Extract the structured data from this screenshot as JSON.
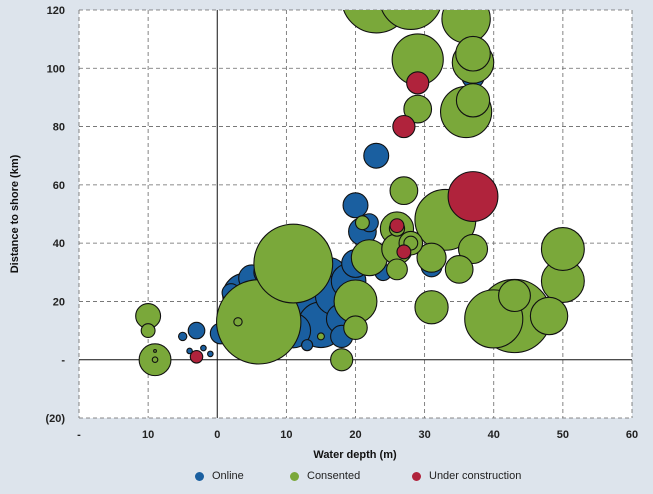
{
  "colors": {
    "background": "#dde4ec",
    "plot_background": "#ffffff",
    "online": "#1a5fa0",
    "consented": "#7aa83a",
    "under_construction": "#b0233c",
    "grid": "#666666",
    "stroke": "#111111"
  },
  "chart_data": {
    "type": "bubble",
    "title": "",
    "xlabel": "Water depth (m)",
    "ylabel": "Distance to shore (km)",
    "xlim": [
      -20,
      60
    ],
    "ylim": [
      -20,
      120
    ],
    "grid": true,
    "grid_style": "dashed",
    "legend_position": "bottom",
    "x_ticks": [
      {
        "value": -20,
        "label": "-"
      },
      {
        "value": -10,
        "label": "10"
      },
      {
        "value": 0,
        "label": "0"
      },
      {
        "value": 10,
        "label": "10"
      },
      {
        "value": 20,
        "label": "20"
      },
      {
        "value": 30,
        "label": "30"
      },
      {
        "value": 40,
        "label": "40"
      },
      {
        "value": 50,
        "label": "50"
      },
      {
        "value": 60,
        "label": "60"
      }
    ],
    "y_ticks": [
      {
        "value": -20,
        "label": "(20)"
      },
      {
        "value": 0,
        "label": "-"
      },
      {
        "value": 20,
        "label": "20"
      },
      {
        "value": 40,
        "label": "40"
      },
      {
        "value": 60,
        "label": "60"
      },
      {
        "value": 80,
        "label": "80"
      },
      {
        "value": 100,
        "label": "100"
      },
      {
        "value": 120,
        "label": "120"
      }
    ],
    "size_note": "r = bubble radius in x-axis data units",
    "series": [
      {
        "name": "Online",
        "color_key": "online",
        "points": [
          {
            "x": 6,
            "y": 17,
            "r": 3.8
          },
          {
            "x": 4,
            "y": 22,
            "r": 3.2
          },
          {
            "x": 8,
            "y": 25,
            "r": 3.0
          },
          {
            "x": 10,
            "y": 20,
            "r": 4.0
          },
          {
            "x": 12,
            "y": 23,
            "r": 3.5
          },
          {
            "x": 9,
            "y": 13,
            "r": 3.6
          },
          {
            "x": 14,
            "y": 18,
            "r": 4.0
          },
          {
            "x": 15,
            "y": 12,
            "r": 3.3
          },
          {
            "x": 11,
            "y": 10,
            "r": 2.5
          },
          {
            "x": 17,
            "y": 22,
            "r": 2.8
          },
          {
            "x": 18,
            "y": 14,
            "r": 2.2
          },
          {
            "x": 19,
            "y": 27,
            "r": 2.5
          },
          {
            "x": 20,
            "y": 33,
            "r": 2.0
          },
          {
            "x": 21,
            "y": 44,
            "r": 2.0
          },
          {
            "x": 20,
            "y": 53,
            "r": 1.8
          },
          {
            "x": 22,
            "y": 37,
            "r": 1.6
          },
          {
            "x": 7,
            "y": 30,
            "r": 1.7
          },
          {
            "x": 5,
            "y": 28,
            "r": 1.9
          },
          {
            "x": 3,
            "y": 18,
            "r": 2.3
          },
          {
            "x": 2,
            "y": 23,
            "r": 1.3
          },
          {
            "x": 0.5,
            "y": 9,
            "r": 1.5
          },
          {
            "x": 2,
            "y": 12,
            "r": 1.3
          },
          {
            "x": -3,
            "y": 10,
            "r": 1.2
          },
          {
            "x": -5,
            "y": 8,
            "r": 0.6
          },
          {
            "x": -4,
            "y": 3,
            "r": 0.4
          },
          {
            "x": -1,
            "y": 2,
            "r": 0.4
          },
          {
            "x": -2,
            "y": 4,
            "r": 0.4
          },
          {
            "x": 23,
            "y": 70,
            "r": 1.8
          },
          {
            "x": 22,
            "y": 47,
            "r": 1.3
          },
          {
            "x": 27,
            "y": 42,
            "r": 1.4
          },
          {
            "x": 31,
            "y": 32,
            "r": 1.5
          },
          {
            "x": 37,
            "y": 97,
            "r": 1.6
          },
          {
            "x": 37,
            "y": 90,
            "r": 1.4
          },
          {
            "x": 24,
            "y": 30,
            "r": 1.2
          },
          {
            "x": 16,
            "y": 28,
            "r": 3.0
          },
          {
            "x": 18,
            "y": 8,
            "r": 1.6
          },
          {
            "x": 13,
            "y": 5,
            "r": 0.8
          }
        ]
      },
      {
        "name": "Consented",
        "color_key": "consented",
        "points": [
          {
            "x": 6,
            "y": 13,
            "r": 6.1
          },
          {
            "x": 11,
            "y": 33,
            "r": 5.7
          },
          {
            "x": 20,
            "y": 20,
            "r": 3.1
          },
          {
            "x": 22,
            "y": 35,
            "r": 2.6
          },
          {
            "x": 20,
            "y": 11,
            "r": 1.7
          },
          {
            "x": 18,
            "y": 0,
            "r": 1.6
          },
          {
            "x": 23,
            "y": 124,
            "r": 5.0
          },
          {
            "x": 28,
            "y": 124,
            "r": 4.5
          },
          {
            "x": 36,
            "y": 117,
            "r": 3.5
          },
          {
            "x": 37,
            "y": 105,
            "r": 2.5
          },
          {
            "x": 37,
            "y": 102,
            "r": 3.0
          },
          {
            "x": 29,
            "y": 103,
            "r": 3.7
          },
          {
            "x": 37,
            "y": 89,
            "r": 2.4
          },
          {
            "x": 36,
            "y": 85,
            "r": 3.7
          },
          {
            "x": 29,
            "y": 86,
            "r": 2.0
          },
          {
            "x": 27,
            "y": 58,
            "r": 2.0
          },
          {
            "x": 33,
            "y": 48,
            "r": 4.4
          },
          {
            "x": 37,
            "y": 38,
            "r": 2.1
          },
          {
            "x": 31,
            "y": 35,
            "r": 2.1
          },
          {
            "x": 35,
            "y": 31,
            "r": 2.0
          },
          {
            "x": 26,
            "y": 45,
            "r": 2.4
          },
          {
            "x": 26,
            "y": 38,
            "r": 2.2
          },
          {
            "x": 26,
            "y": 31,
            "r": 1.5
          },
          {
            "x": 28,
            "y": 40,
            "r": 1.7
          },
          {
            "x": 28,
            "y": 40,
            "r": 1.0
          },
          {
            "x": 31,
            "y": 18,
            "r": 2.4
          },
          {
            "x": 40,
            "y": 14,
            "r": 4.2
          },
          {
            "x": 43,
            "y": 15,
            "r": 5.3
          },
          {
            "x": 43,
            "y": 22,
            "r": 2.3
          },
          {
            "x": 48,
            "y": 15,
            "r": 2.7
          },
          {
            "x": 50,
            "y": 27,
            "r": 3.1
          },
          {
            "x": 50,
            "y": 38,
            "r": 3.1
          },
          {
            "x": 21,
            "y": 47,
            "r": 1.0
          },
          {
            "x": 26,
            "y": 45,
            "r": 1.1
          },
          {
            "x": -10,
            "y": 15,
            "r": 1.8
          },
          {
            "x": -10,
            "y": 10,
            "r": 1.0
          },
          {
            "x": -9,
            "y": 0,
            "r": 2.3
          },
          {
            "x": -9,
            "y": 0,
            "r": 0.4
          },
          {
            "x": -9,
            "y": 3,
            "r": 0.2
          },
          {
            "x": 3,
            "y": 13,
            "r": 0.6
          },
          {
            "x": 15,
            "y": 8,
            "r": 0.5
          }
        ]
      },
      {
        "name": "Under construction",
        "color_key": "under_construction",
        "points": [
          {
            "x": 37,
            "y": 56,
            "r": 3.6
          },
          {
            "x": 29,
            "y": 95,
            "r": 1.6
          },
          {
            "x": 27,
            "y": 80,
            "r": 1.6
          },
          {
            "x": 26,
            "y": 46,
            "r": 1.0
          },
          {
            "x": 27,
            "y": 37,
            "r": 1.0
          },
          {
            "x": -3,
            "y": 1,
            "r": 0.9
          }
        ]
      }
    ]
  }
}
